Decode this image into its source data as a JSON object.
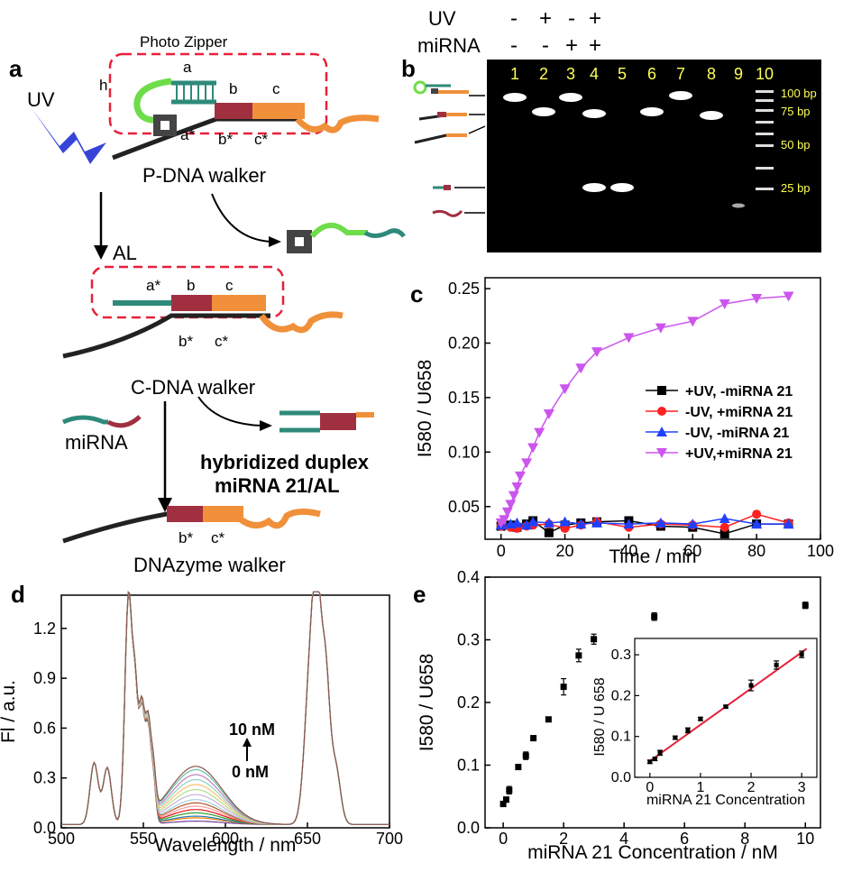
{
  "panel_labels": {
    "a": "a",
    "b": "b",
    "c": "c",
    "d": "d",
    "e": "e"
  },
  "schematic": {
    "photo_zipper": "Photo Zipper",
    "uv": "UV",
    "h": "h",
    "seg_a": "a",
    "seg_b": "b",
    "seg_c": "c",
    "seg_a_star": "a*",
    "seg_b_star": "b*",
    "seg_c_star": "c*",
    "p_walker": "P-DNA walker",
    "al": "AL",
    "c_walker": "C-DNA walker",
    "mirna": "miRNA",
    "duplex_line1": "hybridized duplex",
    "duplex_line2": "miRNA 21/AL",
    "dnazyme_walker": "DNAzyme walker"
  },
  "gel": {
    "uv_label": "UV",
    "mirna_label": "miRNA",
    "uv_signs": [
      "-",
      "+",
      "-",
      "+"
    ],
    "mirna_signs": [
      "-",
      "-",
      "+",
      "+"
    ],
    "lanes": [
      "1",
      "2",
      "3",
      "4",
      "5",
      "6",
      "7",
      "8",
      "9",
      "10"
    ],
    "ladder": [
      "100 bp",
      "75 bp",
      "50 bp",
      "25 bp"
    ]
  },
  "chart_data": [
    {
      "panel": "c",
      "type": "line",
      "xlabel": "Time / min",
      "ylabel": "I580 / U658",
      "xlim": [
        -5,
        100
      ],
      "ylim": [
        0.02,
        0.26
      ],
      "xticks": [
        0,
        20,
        40,
        60,
        80,
        100
      ],
      "yticks": [
        0.05,
        0.1,
        0.15,
        0.2,
        0.25
      ],
      "legend_position": "right",
      "series": [
        {
          "name": "+UV, -miRNA 21",
          "color": "#000000",
          "marker": "square",
          "x": [
            0,
            3,
            5,
            8,
            10,
            15,
            20,
            25,
            30,
            40,
            50,
            60,
            70,
            80,
            90
          ],
          "y": [
            0.032,
            0.033,
            0.031,
            0.034,
            0.037,
            0.026,
            0.033,
            0.035,
            0.036,
            0.037,
            0.032,
            0.031,
            0.025,
            0.034,
            0.034
          ]
        },
        {
          "name": "-UV, +miRNA 21",
          "color": "#ff2020",
          "marker": "circle",
          "x": [
            0,
            3,
            5,
            8,
            10,
            15,
            20,
            25,
            30,
            40,
            50,
            60,
            70,
            80,
            90
          ],
          "y": [
            0.032,
            0.031,
            0.03,
            0.032,
            0.033,
            0.034,
            0.03,
            0.033,
            0.036,
            0.031,
            0.034,
            0.033,
            0.031,
            0.043,
            0.035
          ]
        },
        {
          "name": "-UV,  -miRNA 21",
          "color": "#2040ff",
          "marker": "triangle-up",
          "x": [
            0,
            3,
            5,
            8,
            10,
            15,
            20,
            25,
            30,
            40,
            50,
            60,
            70,
            80,
            90
          ],
          "y": [
            0.033,
            0.034,
            0.035,
            0.033,
            0.036,
            0.035,
            0.036,
            0.034,
            0.035,
            0.034,
            0.035,
            0.034,
            0.039,
            0.034,
            0.034
          ]
        },
        {
          "name": "+UV,+miRNA 21",
          "color": "#cc55ee",
          "marker": "triangle-down",
          "x": [
            0,
            1,
            2,
            3,
            4,
            5,
            6,
            8,
            10,
            12,
            15,
            20,
            25,
            30,
            40,
            50,
            60,
            70,
            80,
            90
          ],
          "y": [
            0.035,
            0.038,
            0.045,
            0.052,
            0.06,
            0.068,
            0.078,
            0.09,
            0.104,
            0.118,
            0.135,
            0.158,
            0.177,
            0.192,
            0.205,
            0.214,
            0.22,
            0.236,
            0.241,
            0.243
          ]
        }
      ]
    },
    {
      "panel": "d",
      "type": "line",
      "xlabel": "Wavelength / nm",
      "ylabel": "Fl / a.u.",
      "xlim": [
        500,
        700
      ],
      "ylim": [
        0,
        1.4
      ],
      "xticks": [
        500,
        550,
        600,
        650,
        700
      ],
      "yticks": [
        0.0,
        0.3,
        0.6,
        0.9,
        1.2
      ],
      "annotation_top": "10 nM",
      "annotation_bottom": "0 nM",
      "peak_height_at_580nm": [
        0.02,
        0.04,
        0.05,
        0.07,
        0.09,
        0.11,
        0.13,
        0.15,
        0.18,
        0.21,
        0.24,
        0.27,
        0.3,
        0.33,
        0.35
      ],
      "series_colors": [
        "#6a3d9a",
        "#ff7f00",
        "#1f78b4",
        "#33a02c",
        "#e31a1c",
        "#fb9a99",
        "#b15928",
        "#a6cee3",
        "#cab2d6",
        "#b2df8a",
        "#fdbf6f",
        "#8dd3c7",
        "#bc80bd",
        "#66c2a5",
        "#8c564b"
      ]
    },
    {
      "panel": "e",
      "type": "scatter",
      "xlabel": "miRNA 21 Concentration / nM",
      "ylabel": "I580 / U658",
      "xlim": [
        -0.6,
        10.5
      ],
      "ylim": [
        0,
        0.4
      ],
      "xticks": [
        0,
        2,
        4,
        6,
        8,
        10
      ],
      "yticks": [
        0.0,
        0.1,
        0.2,
        0.3,
        0.4
      ],
      "x": [
        0,
        0.1,
        0.2,
        0.5,
        0.75,
        1,
        1.5,
        2,
        2.5,
        3,
        5,
        10
      ],
      "y": [
        0.038,
        0.045,
        0.06,
        0.097,
        0.115,
        0.143,
        0.173,
        0.225,
        0.275,
        0.301,
        0.337,
        0.355
      ],
      "yerr": [
        0.004,
        0.004,
        0.006,
        0.004,
        0.006,
        0.004,
        0.003,
        0.013,
        0.01,
        0.008,
        0.006,
        0.005
      ]
    },
    {
      "panel": "e-inset",
      "type": "scatter",
      "xlabel": "miRNA 21 Concentration",
      "ylabel": "I580 / U 658",
      "xlim": [
        -0.3,
        3.3
      ],
      "ylim": [
        0,
        0.34
      ],
      "xticks": [
        0,
        1,
        2,
        3
      ],
      "yticks": [
        0.0,
        0.1,
        0.2,
        0.3
      ],
      "x": [
        0,
        0.1,
        0.2,
        0.5,
        0.75,
        1,
        1.5,
        2,
        2.5,
        3
      ],
      "y": [
        0.038,
        0.045,
        0.06,
        0.097,
        0.115,
        0.143,
        0.173,
        0.225,
        0.275,
        0.301
      ],
      "yerr": [
        0.004,
        0.004,
        0.006,
        0.004,
        0.006,
        0.004,
        0.003,
        0.013,
        0.01,
        0.008
      ],
      "fit_line": {
        "color": "#e8203a",
        "x": [
          0,
          3.1
        ],
        "y": [
          0.04,
          0.315
        ]
      }
    }
  ]
}
